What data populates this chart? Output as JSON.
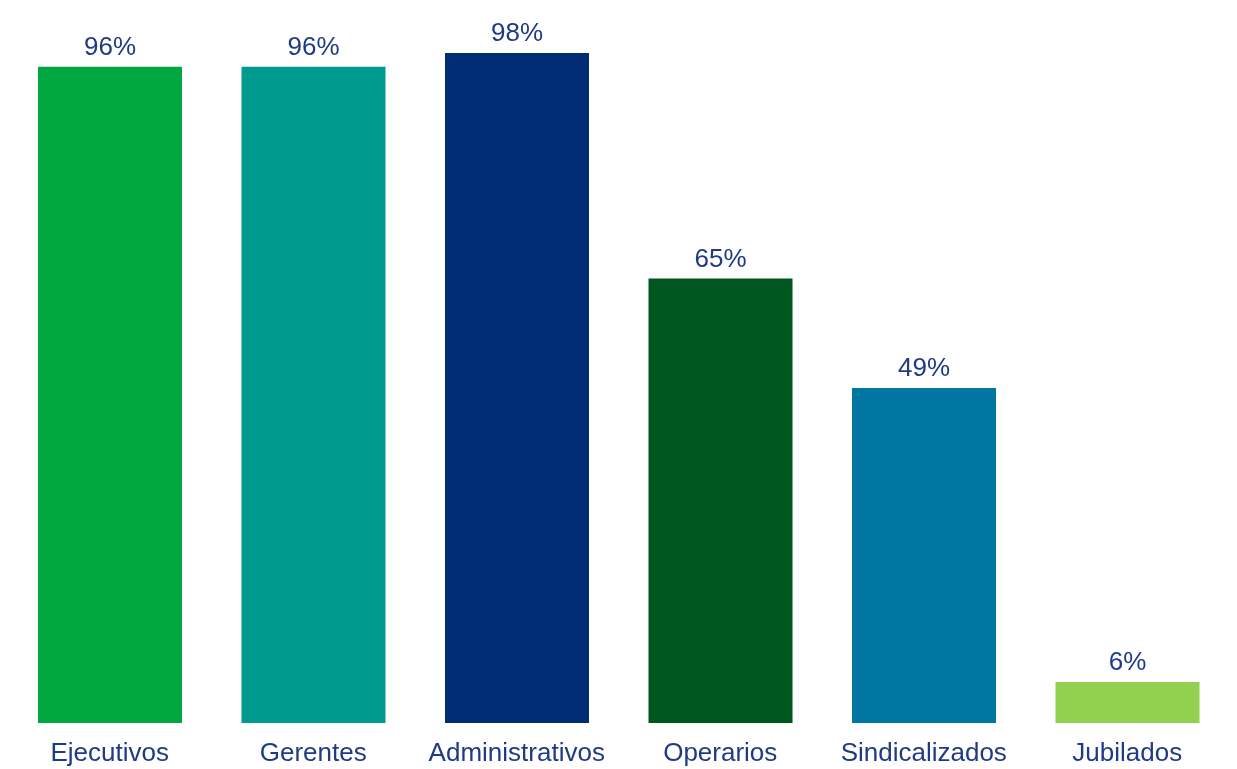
{
  "chart_data": {
    "type": "bar",
    "categories": [
      "Ejecutivos",
      "Gerentes",
      "Administrativos",
      "Operarios",
      "Sindicalizados",
      "Jubilados"
    ],
    "values": [
      96,
      96,
      98,
      65,
      49,
      6
    ],
    "value_labels": [
      "96%",
      "96%",
      "98%",
      "65%",
      "49%",
      "6%"
    ],
    "colors": [
      "#00a83f",
      "#009a8f",
      "#002d74",
      "#00561f",
      "#0077a3",
      "#92d050"
    ],
    "grid": false,
    "legend": false
  }
}
